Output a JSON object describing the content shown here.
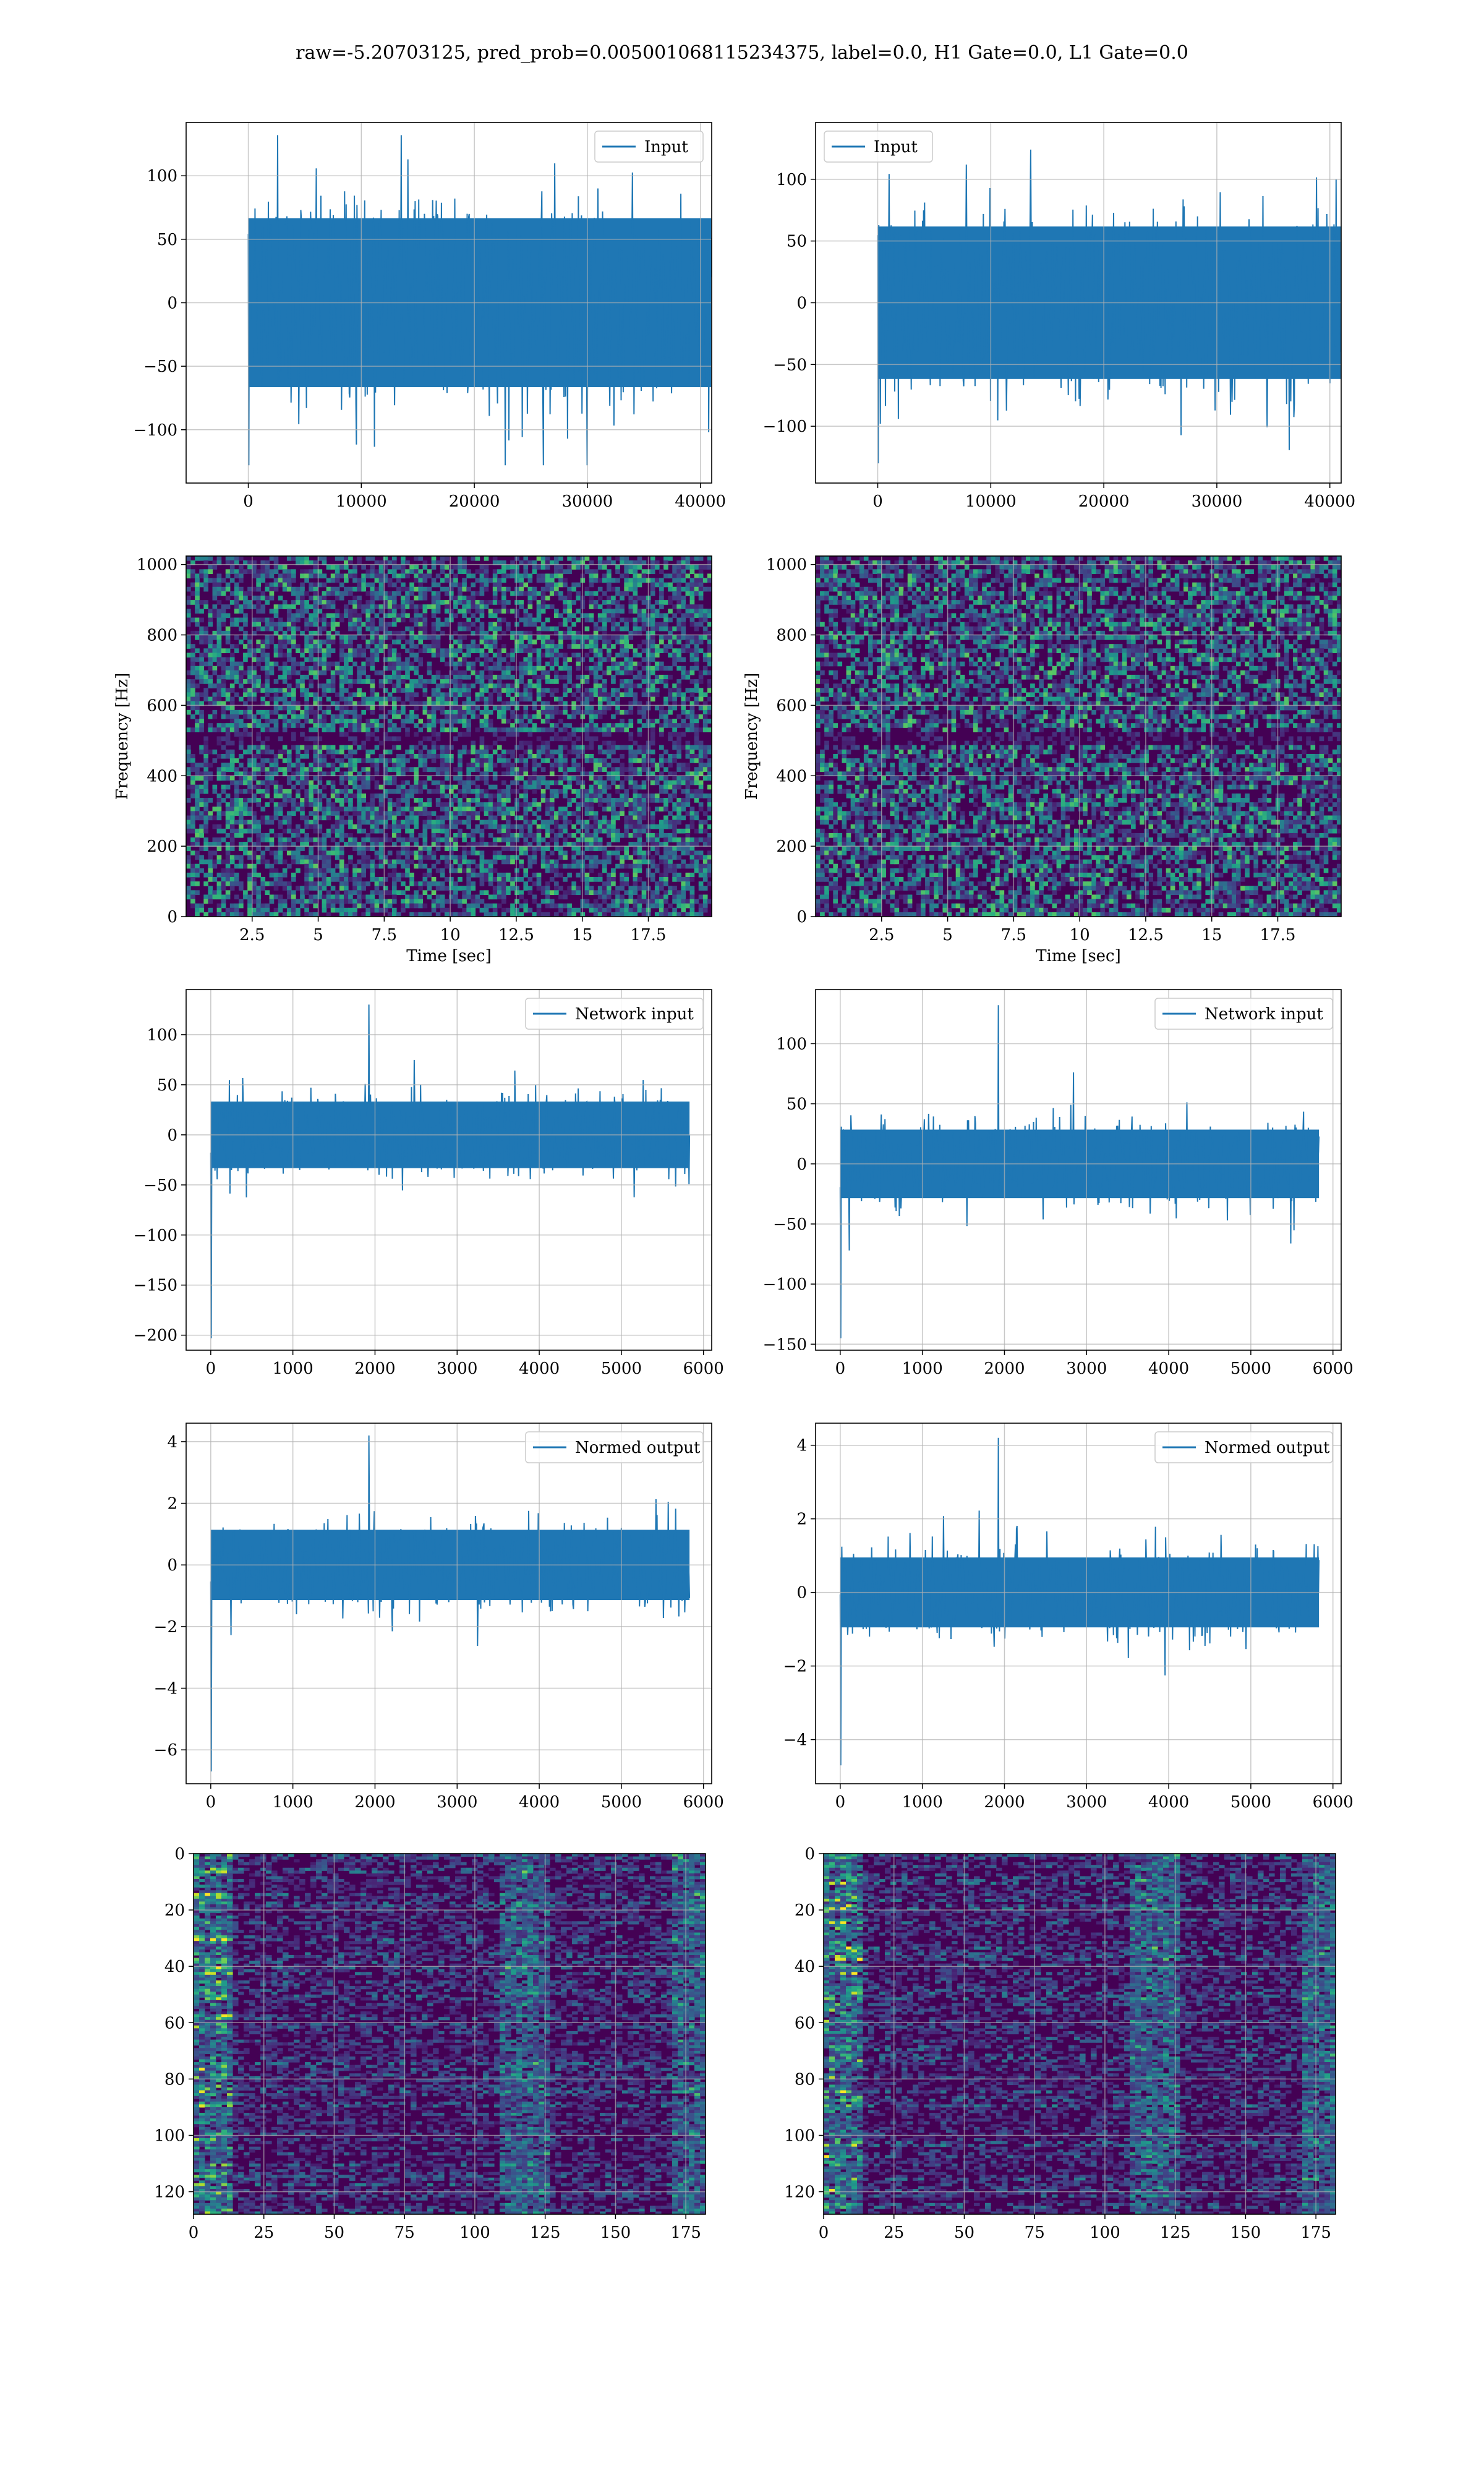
{
  "figure": {
    "suptitle": "raw=-5.20703125, pred_prob=0.005001068115234375, label=0.0, H1 Gate=0.0, L1 Gate=0.0",
    "colors": {
      "line": "#1f77b4",
      "grid": "#b0b0b0",
      "viridis_low": "#440154",
      "viridis_mid": "#21918c",
      "viridis_high": "#fde725"
    }
  },
  "chart_data": [
    {
      "id": "input-h1",
      "type": "line",
      "legend": "Input",
      "legend_loc": "upper right",
      "xlim": [
        -5500,
        41000
      ],
      "ylim": [
        -142,
        142
      ],
      "xticks": [
        0,
        10000,
        20000,
        30000,
        40000
      ],
      "yticks": [
        -100,
        -50,
        0,
        50,
        100
      ],
      "series": [
        {
          "name": "Input",
          "x_range": [
            0,
            40960
          ],
          "envelope_max": 132,
          "envelope_min": -128,
          "band": 70
        }
      ]
    },
    {
      "id": "input-l1",
      "type": "line",
      "legend": "Input",
      "legend_loc": "upper left",
      "xlim": [
        -5500,
        41000
      ],
      "ylim": [
        -146,
        146
      ],
      "xticks": [
        0,
        10000,
        20000,
        30000,
        40000
      ],
      "yticks": [
        -100,
        -50,
        0,
        50,
        100
      ],
      "series": [
        {
          "name": "Input",
          "x_range": [
            0,
            40960
          ],
          "envelope_max": 124,
          "envelope_min": -130,
          "band": 65
        }
      ]
    },
    {
      "id": "spectrogram-h1",
      "type": "heatmap",
      "xlabel": "Time [sec]",
      "ylabel": "Frequency [Hz]",
      "xlim": [
        0.0,
        19.9
      ],
      "ylim": [
        0,
        1024
      ],
      "xticks": [
        2.5,
        5.0,
        7.5,
        10.0,
        12.5,
        15.0,
        17.5
      ],
      "yticks": [
        0,
        200,
        400,
        600,
        800,
        1000
      ],
      "colormap": "viridis"
    },
    {
      "id": "spectrogram-l1",
      "type": "heatmap",
      "xlabel": "Time [sec]",
      "ylabel": "Frequency [Hz]",
      "xlim": [
        0.0,
        19.9
      ],
      "ylim": [
        0,
        1024
      ],
      "xticks": [
        2.5,
        5.0,
        7.5,
        10.0,
        12.5,
        15.0,
        17.5
      ],
      "yticks": [
        0,
        200,
        400,
        600,
        800,
        1000
      ],
      "colormap": "viridis"
    },
    {
      "id": "network-input-h1",
      "type": "line",
      "legend": "Network input",
      "legend_loc": "upper right",
      "xlim": [
        -300,
        6100
      ],
      "ylim": [
        -215,
        145
      ],
      "xticks": [
        0,
        1000,
        2000,
        3000,
        4000,
        5000,
        6000
      ],
      "yticks": [
        -200,
        -150,
        -100,
        -50,
        0,
        50,
        100
      ],
      "series": [
        {
          "name": "Network input",
          "x_range": [
            0,
            5830
          ],
          "envelope_max": 130,
          "envelope_min": -203,
          "band": 35
        }
      ]
    },
    {
      "id": "network-input-l1",
      "type": "line",
      "legend": "Network input",
      "legend_loc": "upper right",
      "xlim": [
        -300,
        6100
      ],
      "ylim": [
        -155,
        145
      ],
      "xticks": [
        0,
        1000,
        2000,
        3000,
        4000,
        5000,
        6000
      ],
      "yticks": [
        -150,
        -100,
        -50,
        0,
        50,
        100
      ],
      "series": [
        {
          "name": "Network input",
          "x_range": [
            0,
            5830
          ],
          "envelope_max": 132,
          "envelope_min": -145,
          "band": 30
        }
      ]
    },
    {
      "id": "normed-output-h1",
      "type": "line",
      "legend": "Normed output",
      "legend_loc": "upper right",
      "xlim": [
        -300,
        6100
      ],
      "ylim": [
        -7.1,
        4.6
      ],
      "xticks": [
        0,
        1000,
        2000,
        3000,
        4000,
        5000,
        6000
      ],
      "yticks": [
        -6,
        -4,
        -2,
        0,
        2,
        4
      ],
      "series": [
        {
          "name": "Normed output",
          "x_range": [
            0,
            5830
          ],
          "envelope_max": 4.2,
          "envelope_min": -6.7,
          "band": 1.2
        }
      ]
    },
    {
      "id": "normed-output-l1",
      "type": "line",
      "legend": "Normed output",
      "legend_loc": "upper right",
      "xlim": [
        -300,
        6100
      ],
      "ylim": [
        -5.2,
        4.6
      ],
      "xticks": [
        0,
        1000,
        2000,
        3000,
        4000,
        5000,
        6000
      ],
      "yticks": [
        -4,
        -2,
        0,
        2,
        4
      ],
      "series": [
        {
          "name": "Normed output",
          "x_range": [
            0,
            5830
          ],
          "envelope_max": 4.2,
          "envelope_min": -4.7,
          "band": 1.0
        }
      ]
    },
    {
      "id": "feature-map-h1",
      "type": "heatmap",
      "xlim": [
        0,
        182
      ],
      "ylim": [
        128,
        0
      ],
      "xticks": [
        0,
        25,
        50,
        75,
        100,
        125,
        150,
        175
      ],
      "yticks": [
        0,
        20,
        40,
        60,
        80,
        100,
        120
      ],
      "colormap": "viridis"
    },
    {
      "id": "feature-map-l1",
      "type": "heatmap",
      "xlim": [
        0,
        182
      ],
      "ylim": [
        128,
        0
      ],
      "xticks": [
        0,
        25,
        50,
        75,
        100,
        125,
        150,
        175
      ],
      "yticks": [
        0,
        20,
        40,
        60,
        80,
        100,
        120
      ],
      "colormap": "viridis"
    }
  ]
}
